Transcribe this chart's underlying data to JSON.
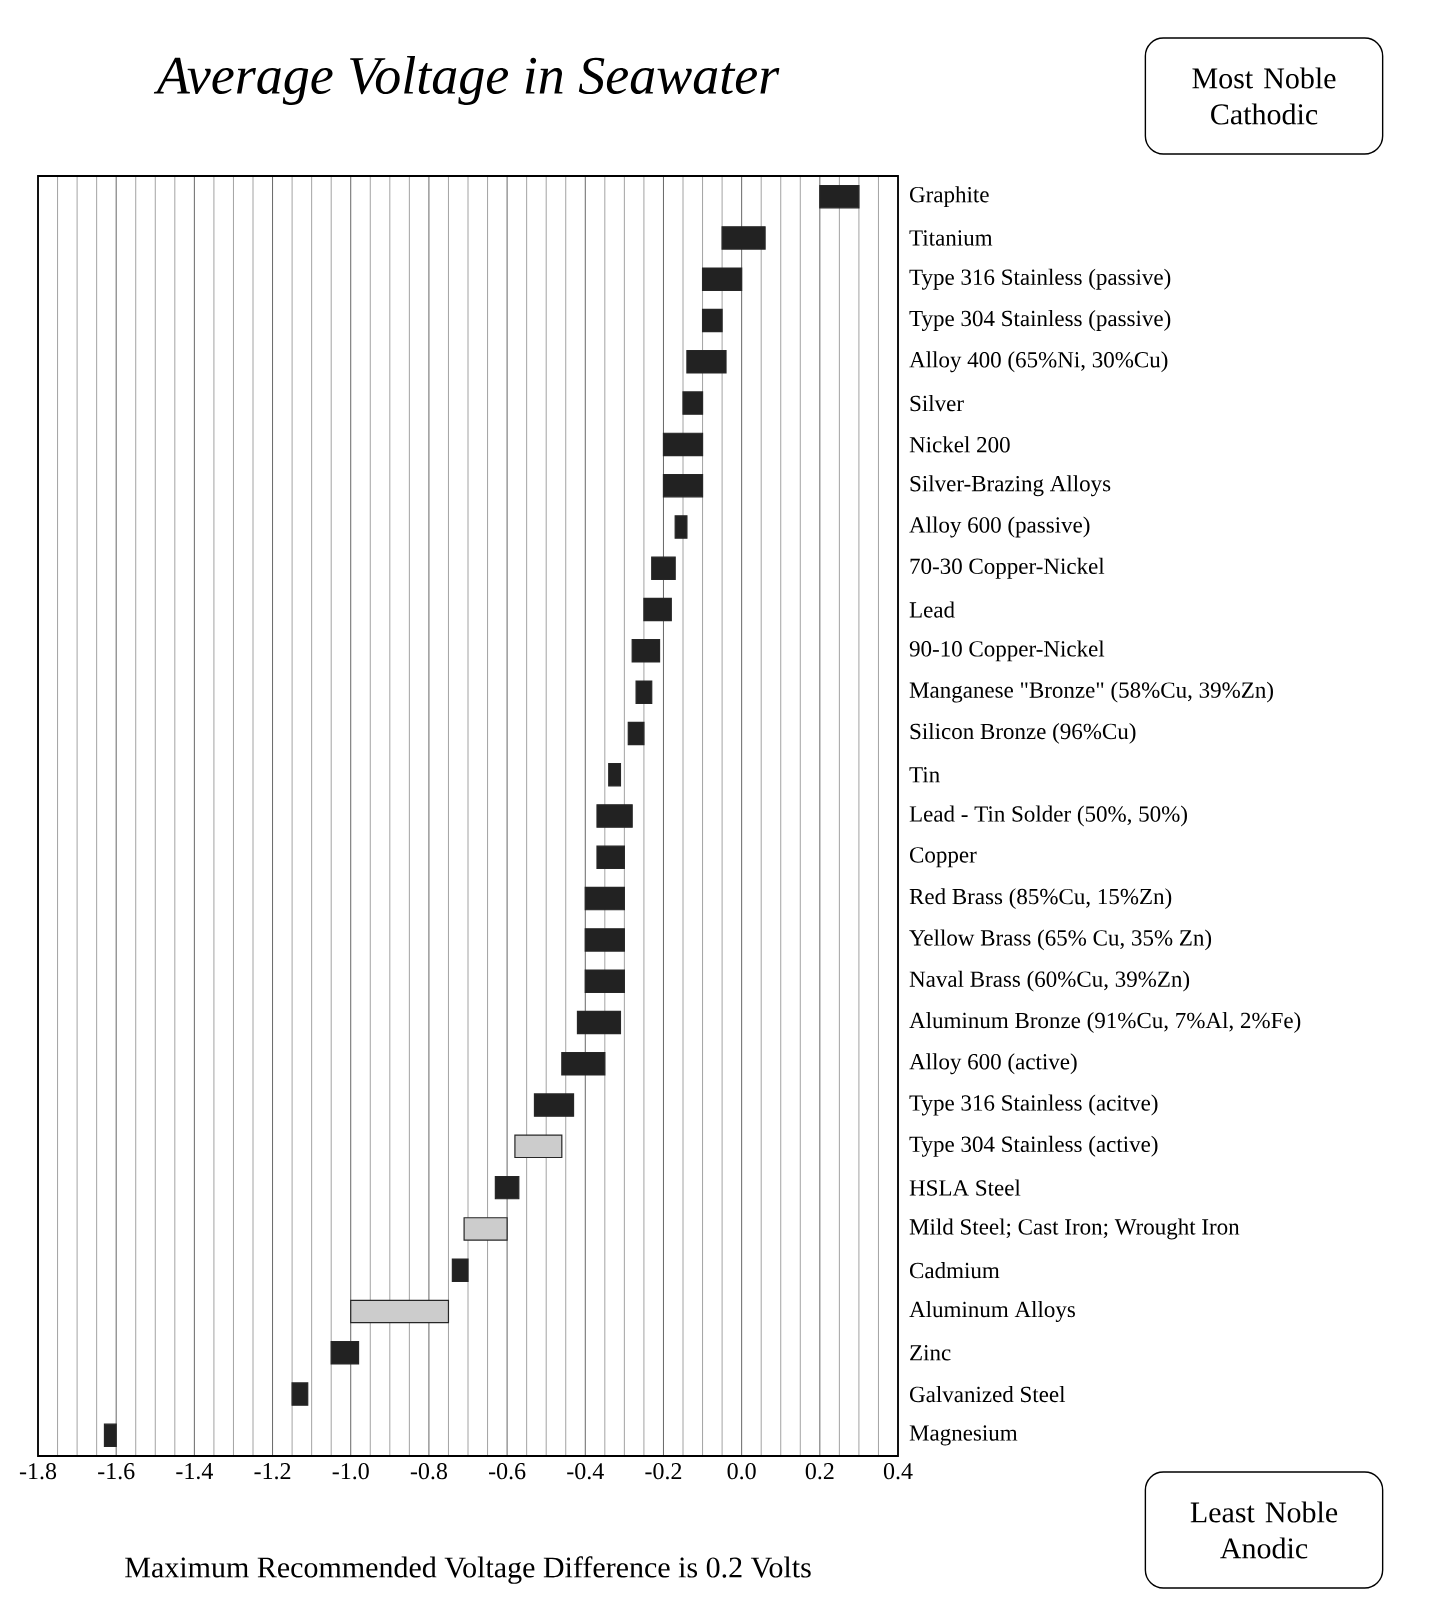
{
  "chart_data": {
    "type": "bar",
    "orientation": "horizontal",
    "title": "Average Voltage in Seawater",
    "categories": [
      "Graphite",
      "Titanium",
      "Type 316 Stainless (passive)",
      "Type 304 Stainless (passive)",
      "Alloy 400 (65%Ni, 30%Cu)",
      "Silver",
      "Nickel 200",
      "Silver-Brazing Alloys",
      "Alloy 600 (passive)",
      "70-30 Copper-Nickel",
      "Lead",
      "90-10 Copper-Nickel",
      "Manganese \"Bronze\" (58%Cu, 39%Zn)",
      "Silicon Bronze (96%Cu)",
      "Tin",
      "Lead - Tin Solder (50%, 50%)",
      "Copper",
      "Red Brass (85%Cu, 15%Zn)",
      "Yellow Brass (65% Cu, 35% Zn)",
      "Naval Brass (60%Cu, 39%Zn)",
      "Aluminum Bronze (91%Cu, 7%Al, 2%Fe)",
      "Alloy 600 (active)",
      "Type 316 Stainless (acitve)",
      "Type 304 Stainless (active)",
      "HSLA Steel",
      "Mild Steel; Cast Iron; Wrought Iron",
      "Cadmium",
      "Aluminum Alloys",
      "Zinc",
      "Galvanized Steel",
      "Magnesium"
    ],
    "base": [
      0.2,
      -0.05,
      -0.1,
      -0.1,
      -0.14,
      -0.15,
      -0.2,
      -0.2,
      -0.17,
      -0.23,
      -0.25,
      -0.28,
      -0.27,
      -0.29,
      -0.34,
      -0.37,
      -0.37,
      -0.4,
      -0.4,
      -0.4,
      -0.42,
      -0.46,
      -0.53,
      -0.58,
      -0.63,
      -0.71,
      -0.74,
      -1.0,
      -1.05,
      -1.15,
      -1.63
    ],
    "values": [
      0.1,
      0.11,
      0.1,
      0.05,
      0.1,
      0.05,
      0.1,
      0.1,
      0.03,
      0.06,
      0.07,
      0.07,
      0.04,
      0.04,
      0.03,
      0.09,
      0.07,
      0.1,
      0.1,
      0.1,
      0.11,
      0.11,
      0.1,
      0.12,
      0.06,
      0.11,
      0.04,
      0.25,
      0.07,
      0.04,
      0.03
    ],
    "colors": [
      "#222222",
      "#222222",
      "#222222",
      "#222222",
      "#222222",
      "#222222",
      "#222222",
      "#222222",
      "#222222",
      "#222222",
      "#222222",
      "#222222",
      "#222222",
      "#222222",
      "#222222",
      "#222222",
      "#222222",
      "#222222",
      "#222222",
      "#222222",
      "#222222",
      "#222222",
      "#222222",
      "#cccccc",
      "#222222",
      "#cccccc",
      "#222222",
      "#cccccc",
      "#222222",
      "#222222",
      "#222222"
    ],
    "xlim": [
      -1.8,
      0.4
    ],
    "xticks": [
      -1.8,
      -1.6,
      -1.4,
      -1.2,
      {
        "value": -1.0,
        "label": "-1.0"
      },
      -0.8,
      -0.6,
      -0.4,
      -0.2,
      {
        "value": 0,
        "label": "0.0"
      },
      0.2,
      0.4
    ],
    "grid": "x",
    "annotations": [
      "Most Noble Cathodic",
      "Least Noble Anodic",
      "Maximum Recommended Voltage Difference is 0.2 Volts"
    ]
  }
}
